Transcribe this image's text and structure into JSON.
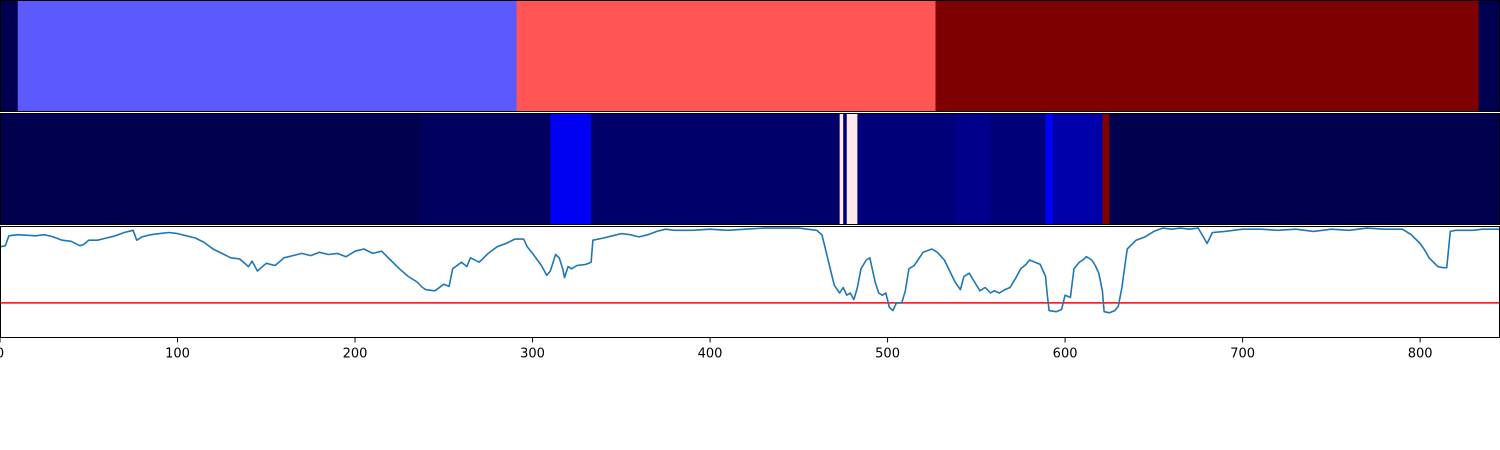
{
  "chart_data": [
    {
      "type": "heatmap",
      "panel": "segments-top",
      "x_range": [
        0,
        845
      ],
      "segments": [
        {
          "x0": 0,
          "x1": 10,
          "color": "#000050"
        },
        {
          "x0": 10,
          "x1": 291,
          "color": "#5a5aff"
        },
        {
          "x0": 291,
          "x1": 527,
          "color": "#ff5555"
        },
        {
          "x0": 527,
          "x1": 833,
          "color": "#7f0000"
        },
        {
          "x0": 833,
          "x1": 845,
          "color": "#000050"
        }
      ]
    },
    {
      "type": "heatmap",
      "panel": "segments-middle",
      "x_range": [
        0,
        845
      ],
      "segments": [
        {
          "x0": 0,
          "x1": 237,
          "color": "#00004f"
        },
        {
          "x0": 237,
          "x1": 310,
          "color": "#00005e"
        },
        {
          "x0": 310,
          "x1": 333,
          "color": "#0000f2"
        },
        {
          "x0": 333,
          "x1": 473,
          "color": "#00006a"
        },
        {
          "x0": 473,
          "x1": 475,
          "color": "#ffe8e8"
        },
        {
          "x0": 475,
          "x1": 477,
          "color": "#000078"
        },
        {
          "x0": 477,
          "x1": 483,
          "color": "#ffe8e8"
        },
        {
          "x0": 483,
          "x1": 538,
          "color": "#000078"
        },
        {
          "x0": 538,
          "x1": 558,
          "color": "#00008a"
        },
        {
          "x0": 558,
          "x1": 589,
          "color": "#000078"
        },
        {
          "x0": 589,
          "x1": 593,
          "color": "#0000ff"
        },
        {
          "x0": 593,
          "x1": 621,
          "color": "#0000aa"
        },
        {
          "x0": 621,
          "x1": 625,
          "color": "#7f0000"
        },
        {
          "x0": 625,
          "x1": 845,
          "color": "#00004f"
        }
      ]
    },
    {
      "type": "line",
      "panel": "signal-bottom",
      "x_range": [
        0,
        845
      ],
      "y_range": [
        0,
        1
      ],
      "line_color": "#1f77b4",
      "threshold": {
        "value": 0.31,
        "color": "#ff0000"
      },
      "xticks": [
        0,
        100,
        200,
        300,
        400,
        500,
        600,
        700,
        800
      ],
      "series": [
        {
          "points": [
            [
              0,
              0.82
            ],
            [
              3,
              0.83
            ],
            [
              5,
              0.92
            ],
            [
              10,
              0.93
            ],
            [
              20,
              0.92
            ],
            [
              25,
              0.93
            ],
            [
              30,
              0.91
            ],
            [
              35,
              0.88
            ],
            [
              40,
              0.87
            ],
            [
              45,
              0.83
            ],
            [
              47,
              0.84
            ],
            [
              50,
              0.88
            ],
            [
              55,
              0.88
            ],
            [
              60,
              0.9
            ],
            [
              65,
              0.92
            ],
            [
              70,
              0.95
            ],
            [
              75,
              0.97
            ],
            [
              77,
              0.88
            ],
            [
              80,
              0.91
            ],
            [
              85,
              0.93
            ],
            [
              90,
              0.94
            ],
            [
              95,
              0.95
            ],
            [
              100,
              0.94
            ],
            [
              105,
              0.92
            ],
            [
              110,
              0.9
            ],
            [
              115,
              0.86
            ],
            [
              120,
              0.8
            ],
            [
              125,
              0.76
            ],
            [
              130,
              0.72
            ],
            [
              135,
              0.71
            ],
            [
              140,
              0.64
            ],
            [
              142,
              0.69
            ],
            [
              145,
              0.6
            ],
            [
              150,
              0.67
            ],
            [
              155,
              0.65
            ],
            [
              160,
              0.72
            ],
            [
              165,
              0.74
            ],
            [
              170,
              0.76
            ],
            [
              175,
              0.74
            ],
            [
              180,
              0.77
            ],
            [
              185,
              0.75
            ],
            [
              190,
              0.76
            ],
            [
              195,
              0.73
            ],
            [
              200,
              0.78
            ],
            [
              205,
              0.8
            ],
            [
              210,
              0.76
            ],
            [
              215,
              0.78
            ],
            [
              220,
              0.7
            ],
            [
              225,
              0.62
            ],
            [
              230,
              0.55
            ],
            [
              235,
              0.5
            ],
            [
              238,
              0.45
            ],
            [
              240,
              0.43
            ],
            [
              245,
              0.42
            ],
            [
              250,
              0.48
            ],
            [
              253,
              0.46
            ],
            [
              255,
              0.62
            ],
            [
              260,
              0.68
            ],
            [
              263,
              0.64
            ],
            [
              265,
              0.72
            ],
            [
              270,
              0.68
            ],
            [
              275,
              0.76
            ],
            [
              280,
              0.82
            ],
            [
              285,
              0.85
            ],
            [
              290,
              0.89
            ],
            [
              295,
              0.89
            ],
            [
              297,
              0.82
            ],
            [
              300,
              0.76
            ],
            [
              305,
              0.65
            ],
            [
              308,
              0.56
            ],
            [
              310,
              0.6
            ],
            [
              313,
              0.75
            ],
            [
              315,
              0.72
            ],
            [
              317,
              0.62
            ],
            [
              318,
              0.54
            ],
            [
              320,
              0.64
            ],
            [
              322,
              0.62
            ],
            [
              325,
              0.65
            ],
            [
              330,
              0.66
            ],
            [
              333,
              0.68
            ],
            [
              334,
              0.88
            ],
            [
              340,
              0.9
            ],
            [
              345,
              0.92
            ],
            [
              350,
              0.94
            ],
            [
              355,
              0.93
            ],
            [
              360,
              0.91
            ],
            [
              365,
              0.93
            ],
            [
              370,
              0.96
            ],
            [
              375,
              0.98
            ],
            [
              380,
              0.97
            ],
            [
              390,
              0.97
            ],
            [
              400,
              0.98
            ],
            [
              410,
              0.97
            ],
            [
              420,
              0.98
            ],
            [
              430,
              0.99
            ],
            [
              440,
              0.99
            ],
            [
              450,
              0.99
            ],
            [
              455,
              0.98
            ],
            [
              460,
              0.97
            ],
            [
              463,
              0.93
            ],
            [
              465,
              0.8
            ],
            [
              468,
              0.6
            ],
            [
              470,
              0.47
            ],
            [
              473,
              0.4
            ],
            [
              475,
              0.45
            ],
            [
              477,
              0.38
            ],
            [
              479,
              0.4
            ],
            [
              481,
              0.34
            ],
            [
              483,
              0.45
            ],
            [
              485,
              0.62
            ],
            [
              488,
              0.7
            ],
            [
              490,
              0.72
            ],
            [
              493,
              0.5
            ],
            [
              495,
              0.4
            ],
            [
              497,
              0.38
            ],
            [
              499,
              0.4
            ],
            [
              501,
              0.27
            ],
            [
              503,
              0.24
            ],
            [
              505,
              0.31
            ],
            [
              508,
              0.31
            ],
            [
              510,
              0.42
            ],
            [
              512,
              0.62
            ],
            [
              515,
              0.65
            ],
            [
              520,
              0.77
            ],
            [
              525,
              0.8
            ],
            [
              528,
              0.77
            ],
            [
              532,
              0.7
            ],
            [
              535,
              0.6
            ],
            [
              538,
              0.5
            ],
            [
              541,
              0.43
            ],
            [
              543,
              0.55
            ],
            [
              546,
              0.58
            ],
            [
              549,
              0.5
            ],
            [
              552,
              0.42
            ],
            [
              555,
              0.45
            ],
            [
              558,
              0.4
            ],
            [
              560,
              0.42
            ],
            [
              563,
              0.4
            ],
            [
              566,
              0.43
            ],
            [
              569,
              0.45
            ],
            [
              572,
              0.53
            ],
            [
              575,
              0.62
            ],
            [
              578,
              0.66
            ],
            [
              580,
              0.7
            ],
            [
              583,
              0.68
            ],
            [
              586,
              0.66
            ],
            [
              589,
              0.55
            ],
            [
              590,
              0.38
            ],
            [
              591,
              0.24
            ],
            [
              595,
              0.23
            ],
            [
              598,
              0.25
            ],
            [
              600,
              0.38
            ],
            [
              603,
              0.36
            ],
            [
              605,
              0.62
            ],
            [
              608,
              0.68
            ],
            [
              610,
              0.7
            ],
            [
              612,
              0.73
            ],
            [
              615,
              0.7
            ],
            [
              617,
              0.65
            ],
            [
              619,
              0.58
            ],
            [
              621,
              0.42
            ],
            [
              622,
              0.23
            ],
            [
              625,
              0.22
            ],
            [
              628,
              0.24
            ],
            [
              630,
              0.28
            ],
            [
              632,
              0.45
            ],
            [
              635,
              0.8
            ],
            [
              640,
              0.88
            ],
            [
              645,
              0.91
            ],
            [
              650,
              0.96
            ],
            [
              655,
              0.99
            ],
            [
              660,
              0.98
            ],
            [
              665,
              0.99
            ],
            [
              670,
              0.98
            ],
            [
              675,
              0.99
            ],
            [
              680,
              0.85
            ],
            [
              683,
              0.95
            ],
            [
              690,
              0.96
            ],
            [
              700,
              0.98
            ],
            [
              710,
              0.98
            ],
            [
              720,
              0.97
            ],
            [
              730,
              0.98
            ],
            [
              740,
              0.96
            ],
            [
              750,
              0.98
            ],
            [
              760,
              0.97
            ],
            [
              770,
              0.99
            ],
            [
              780,
              0.98
            ],
            [
              790,
              0.98
            ],
            [
              795,
              0.93
            ],
            [
              800,
              0.85
            ],
            [
              803,
              0.78
            ],
            [
              805,
              0.72
            ],
            [
              810,
              0.64
            ],
            [
              813,
              0.63
            ],
            [
              815,
              0.63
            ],
            [
              817,
              0.96
            ],
            [
              820,
              0.97
            ],
            [
              830,
              0.97
            ],
            [
              835,
              0.98
            ],
            [
              845,
              0.98
            ]
          ]
        }
      ]
    }
  ]
}
